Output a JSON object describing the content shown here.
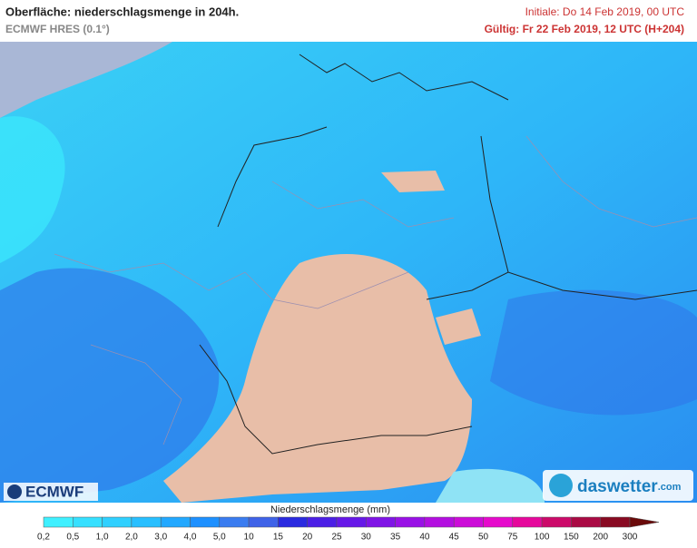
{
  "header": {
    "title": "Oberfläche: niederschlagsmenge in 204h.",
    "model": "ECMWF HRES (0.1°)",
    "initial": "Initiale: Do 14 Feb 2019, 00 UTC",
    "valid": "Gültig: Fr 22 Feb 2019, 12 UTC (H+204)"
  },
  "logos": {
    "left": "ECMWF",
    "right": "daswetter",
    "right_suffix": ".com"
  },
  "legend": {
    "title": "Niederschlagsmenge (mm)",
    "labels": [
      "0,2",
      "0,5",
      "1,0",
      "2,0",
      "3,0",
      "4,0",
      "5,0",
      "10",
      "15",
      "20",
      "25",
      "30",
      "35",
      "40",
      "45",
      "50",
      "75",
      "100",
      "150",
      "200",
      "300"
    ],
    "colors": [
      "#3ff0ff",
      "#36e0ff",
      "#2fd0ff",
      "#28bfff",
      "#22a8ff",
      "#1d90ff",
      "#3a7cf0",
      "#3f63e8",
      "#2a2ae0",
      "#4b1fe6",
      "#6618e8",
      "#7f14e6",
      "#9911e6",
      "#b30ee0",
      "#cc0cd8",
      "#e60acc",
      "#e6089c",
      "#cc0a6a",
      "#aa0a44",
      "#880a22",
      "#6a0a0a"
    ]
  }
}
